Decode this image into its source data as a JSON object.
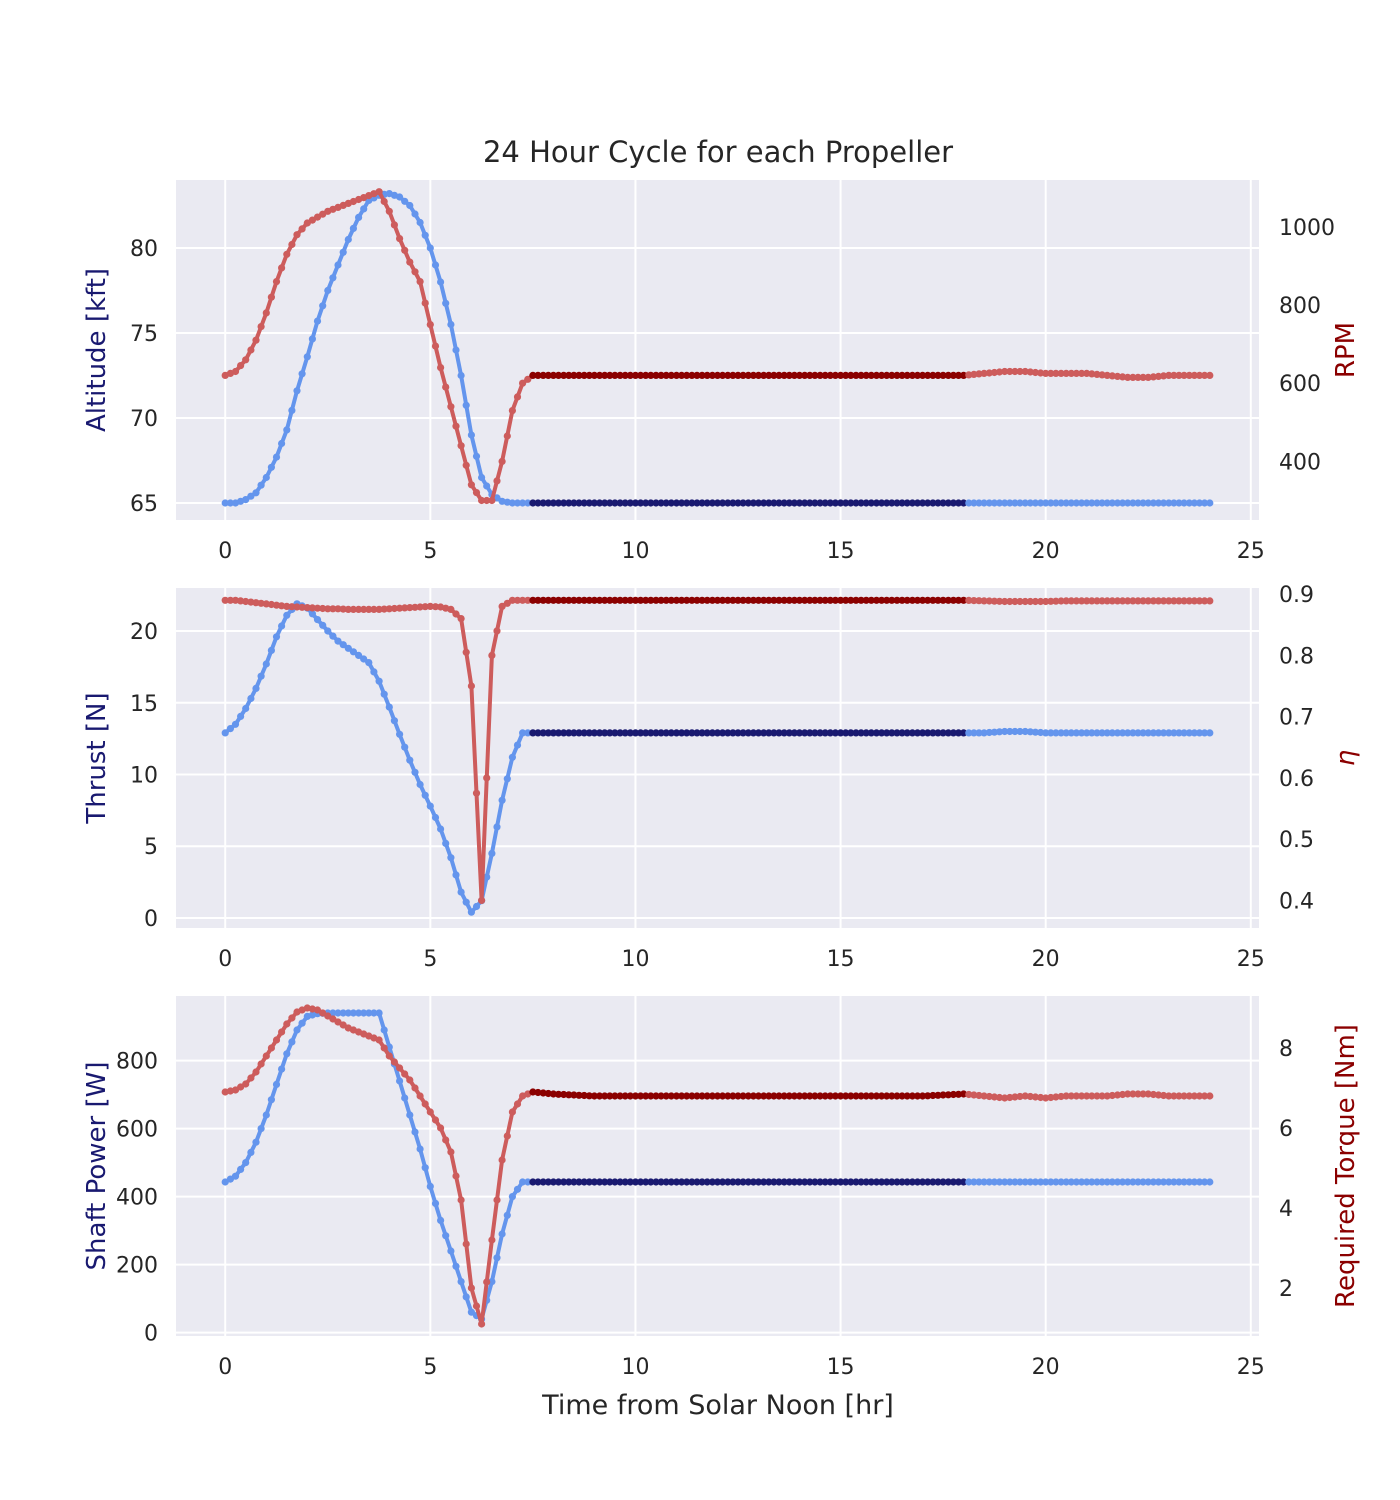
{
  "chart_data": {
    "type": "line",
    "title": "24 Hour Cycle for each Propeller",
    "xlabel": "Time from Solar Noon [hr]",
    "xlim": [
      -1.2,
      25.2
    ],
    "xticks": [
      0,
      5,
      10,
      15,
      20,
      25
    ],
    "x": [
      0,
      0.25,
      0.5,
      0.75,
      1,
      1.25,
      1.5,
      1.75,
      2,
      2.25,
      2.5,
      2.75,
      3,
      3.25,
      3.5,
      3.75,
      4,
      4.25,
      4.5,
      4.75,
      5,
      5.25,
      5.5,
      5.75,
      6,
      6.25,
      6.5,
      6.75,
      7,
      7.25,
      7.5,
      8,
      9,
      10,
      11,
      12,
      13,
      14,
      15,
      16,
      17,
      18,
      18.5,
      19,
      19.5,
      20,
      20.5,
      21,
      21.5,
      22,
      22.5,
      23,
      23.5,
      24
    ],
    "constant_segment_start": 7.4,
    "constant_segment_end": 18,
    "colors": {
      "left_series": "#6495ed",
      "right_series": "#cd5c5c",
      "left_constant": "#191970",
      "right_constant": "#8b0000",
      "left_label": "#191970",
      "right_label": "#8b0000",
      "background": "#eaeaf2",
      "grid": "#ffffff"
    },
    "panels": [
      {
        "ylabel_left": "Altitude [kft]",
        "ylabel_right": "RPM",
        "ylim_left": [
          64,
          84
        ],
        "ylim_right": [
          250,
          1120
        ],
        "yticks_left": [
          65,
          70,
          75,
          80
        ],
        "yticks_right": [
          400,
          600,
          800,
          1000
        ],
        "left": [
          65,
          65,
          65.2,
          65.6,
          66.5,
          67.7,
          69.3,
          71.6,
          73.6,
          75.7,
          77.5,
          79,
          80.5,
          81.8,
          82.8,
          83.1,
          83.2,
          83,
          82.5,
          81.5,
          80,
          78,
          75.5,
          72.5,
          69,
          66.5,
          65.5,
          65.1,
          65,
          65,
          65,
          65,
          65,
          65,
          65,
          65,
          65,
          65,
          65,
          65,
          65,
          65,
          65,
          65,
          65,
          65,
          65,
          65,
          65,
          65,
          65,
          65,
          65,
          65
        ],
        "right": [
          620,
          630,
          660,
          710,
          780,
          860,
          930,
          980,
          1010,
          1025,
          1040,
          1050,
          1060,
          1070,
          1080,
          1090,
          1040,
          970,
          910,
          860,
          750,
          640,
          540,
          440,
          340,
          300,
          300,
          400,
          530,
          600,
          620,
          620,
          620,
          620,
          620,
          620,
          620,
          620,
          620,
          620,
          620,
          620,
          625,
          630,
          630,
          625,
          625,
          625,
          620,
          615,
          615,
          620,
          620,
          620
        ]
      },
      {
        "ylabel_left": "Thrust [N]",
        "ylabel_right": "η",
        "ylim_left": [
          -0.7,
          23
        ],
        "ylim_right": [
          0.355,
          0.91
        ],
        "yticks_left": [
          0,
          5,
          10,
          15,
          20
        ],
        "yticks_right": [
          0.4,
          0.5,
          0.6,
          0.7,
          0.8,
          0.9
        ],
        "left": [
          12.9,
          13.5,
          14.6,
          16,
          17.7,
          19.6,
          21.1,
          21.9,
          21.6,
          20.8,
          20,
          19.3,
          18.8,
          18.3,
          17.8,
          16.5,
          14.7,
          12.8,
          11,
          9.3,
          7.8,
          6.2,
          4.2,
          1.8,
          0.4,
          1.2,
          4.5,
          8.2,
          11.2,
          12.9,
          12.9,
          12.9,
          12.9,
          12.9,
          12.9,
          12.9,
          12.9,
          12.9,
          12.9,
          12.9,
          12.9,
          12.9,
          12.9,
          13,
          13,
          12.9,
          12.9,
          12.9,
          12.9,
          12.9,
          12.9,
          12.9,
          12.9,
          12.9
        ],
        "right": [
          0.89,
          0.89,
          0.888,
          0.886,
          0.884,
          0.882,
          0.88,
          0.879,
          0.878,
          0.877,
          0.876,
          0.876,
          0.875,
          0.875,
          0.875,
          0.875,
          0.876,
          0.877,
          0.878,
          0.879,
          0.88,
          0.879,
          0.875,
          0.86,
          0.75,
          0.4,
          0.8,
          0.88,
          0.89,
          0.89,
          0.89,
          0.89,
          0.89,
          0.89,
          0.89,
          0.89,
          0.89,
          0.89,
          0.89,
          0.89,
          0.89,
          0.89,
          0.889,
          0.888,
          0.888,
          0.888,
          0.889,
          0.889,
          0.889,
          0.889,
          0.889,
          0.889,
          0.889,
          0.889
        ]
      },
      {
        "ylabel_left": "Shaft Power [W]",
        "ylabel_right": "Required Torque [Nm]",
        "ylim_left": [
          -10,
          990
        ],
        "ylim_right": [
          0.8,
          9.3
        ],
        "yticks_left": [
          0,
          200,
          400,
          600,
          800
        ],
        "yticks_right": [
          2,
          4,
          6,
          8
        ],
        "left": [
          443,
          460,
          500,
          560,
          640,
          730,
          820,
          890,
          930,
          938,
          940,
          940,
          940,
          940,
          940,
          940,
          840,
          740,
          640,
          540,
          430,
          330,
          240,
          150,
          60,
          40,
          150,
          290,
          400,
          443,
          443,
          443,
          443,
          443,
          443,
          443,
          443,
          443,
          443,
          443,
          443,
          443,
          443,
          443,
          443,
          443,
          443,
          443,
          443,
          443,
          443,
          443,
          443,
          443
        ],
        "right": [
          6.9,
          6.95,
          7.1,
          7.4,
          7.8,
          8.2,
          8.6,
          8.9,
          9.0,
          8.95,
          8.8,
          8.65,
          8.5,
          8.4,
          8.3,
          8.2,
          7.8,
          7.5,
          7.2,
          6.8,
          6.4,
          6.0,
          5.4,
          4.2,
          2.0,
          1.1,
          3.2,
          5.2,
          6.4,
          6.8,
          6.9,
          6.85,
          6.8,
          6.8,
          6.8,
          6.8,
          6.8,
          6.8,
          6.8,
          6.8,
          6.8,
          6.85,
          6.8,
          6.75,
          6.8,
          6.75,
          6.8,
          6.8,
          6.8,
          6.85,
          6.85,
          6.8,
          6.8,
          6.8
        ]
      }
    ]
  }
}
